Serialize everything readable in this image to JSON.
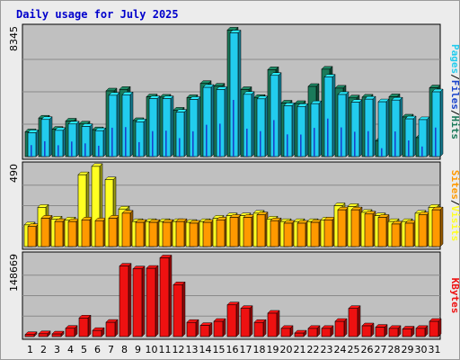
{
  "colors": {
    "background": "#ececec",
    "panel": "#c0c0c0",
    "hits": "#1a7a5a",
    "files": "#1a44cc",
    "pages": "#22ccee",
    "visits": "#ffff22",
    "sites": "#ff9900",
    "kbytes": "#ee1111",
    "weekend_label": "#00805a"
  },
  "chart_data": [
    {
      "type": "bar",
      "title": "Daily usage for July 2025",
      "categories": [
        "1",
        "2",
        "3",
        "4",
        "5",
        "6",
        "7",
        "8",
        "9",
        "10",
        "11",
        "12",
        "13",
        "14",
        "15",
        "16",
        "17",
        "18",
        "19",
        "20",
        "21",
        "22",
        "23",
        "24",
        "25",
        "26",
        "27",
        "28",
        "29",
        "30",
        "31"
      ],
      "weekend_days": [
        "5",
        "6",
        "12",
        "13",
        "19",
        "20",
        "26",
        "27"
      ],
      "ymax_label": "8345",
      "ylim": [
        0,
        8345
      ],
      "legend": [
        "Pages",
        "Files",
        "Hits"
      ],
      "legend_placement": "right",
      "series": [
        {
          "name": "Hits",
          "values": [
            1600,
            2480,
            1760,
            2290,
            2100,
            1730,
            4230,
            4330,
            2320,
            3850,
            3830,
            2990,
            3800,
            4710,
            4540,
            8150,
            4320,
            3810,
            5600,
            3450,
            3420,
            4520,
            5630,
            4410,
            3780,
            3830,
            1020,
            3860,
            2550,
            1220,
            4430
          ]
        },
        {
          "name": "Files",
          "values": [
            740,
            990,
            730,
            970,
            850,
            700,
            1860,
            1900,
            930,
            1640,
            1670,
            1190,
            1630,
            2050,
            2120,
            3650,
            1800,
            1640,
            2350,
            1430,
            1420,
            1850,
            2450,
            1880,
            1600,
            1640,
            540,
            1620,
            1040,
            650,
            1870
          ]
        },
        {
          "name": "Pages",
          "values": [
            1540,
            2390,
            1690,
            2100,
            1940,
            1670,
            3950,
            3980,
            2240,
            3730,
            3730,
            2860,
            3680,
            4460,
            4320,
            7970,
            4010,
            3720,
            5230,
            3280,
            3230,
            3410,
            5120,
            4000,
            3500,
            3700,
            3530,
            3640,
            2430,
            2380,
            4170
          ]
        }
      ]
    },
    {
      "type": "bar",
      "ymax_label": "490",
      "ylim": [
        0,
        490
      ],
      "legend": [
        "Sites",
        "Visits"
      ],
      "legend_placement": "right",
      "series": [
        {
          "name": "Visits",
          "values": [
            130,
            235,
            165,
            160,
            430,
            480,
            400,
            225,
            150,
            150,
            150,
            150,
            145,
            150,
            170,
            185,
            185,
            200,
            165,
            150,
            150,
            150,
            160,
            245,
            240,
            205,
            185,
            150,
            150,
            200,
            235
          ]
        },
        {
          "name": "Sites",
          "values": [
            120,
            170,
            150,
            150,
            160,
            155,
            170,
            200,
            145,
            145,
            145,
            150,
            140,
            145,
            160,
            175,
            175,
            190,
            155,
            140,
            140,
            145,
            160,
            220,
            220,
            195,
            175,
            135,
            140,
            190,
            220
          ]
        }
      ]
    },
    {
      "type": "bar",
      "ymax_label": "148669",
      "ylim": [
        0,
        148669
      ],
      "legend": [
        "KBytes"
      ],
      "legend_placement": "right",
      "series": [
        {
          "name": "KBytes",
          "values": [
            3700,
            5200,
            4800,
            15100,
            33800,
            11200,
            26000,
            128000,
            123000,
            124000,
            143000,
            94200,
            25800,
            20200,
            27700,
            57600,
            51100,
            25800,
            42500,
            14900,
            6400,
            14900,
            14900,
            27700,
            51100,
            19600,
            17000,
            14900,
            13800,
            14900,
            27700
          ]
        }
      ]
    }
  ]
}
